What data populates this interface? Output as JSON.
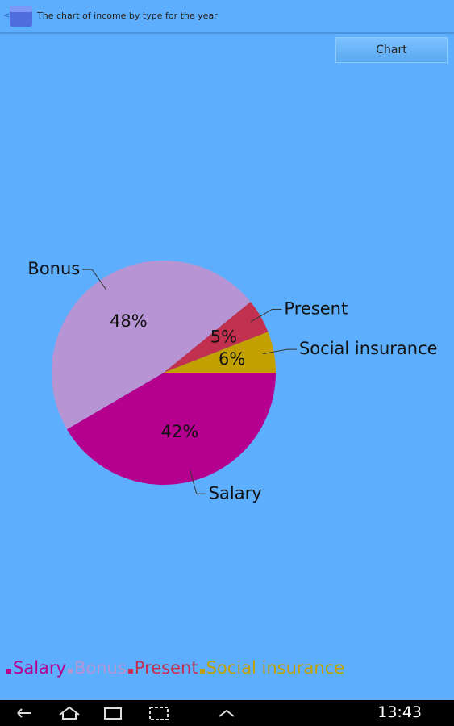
{
  "app_bar": {
    "title": "The chart of income by type for the year"
  },
  "toolbar": {
    "button": "Chart"
  },
  "chart_data": {
    "type": "pie",
    "categories": [
      "Salary",
      "Bonus",
      "Present",
      "Social insurance"
    ],
    "values": [
      42,
      48,
      5,
      6
    ],
    "value_labels": [
      "42%",
      "48%",
      "5%",
      "6%"
    ],
    "colors": [
      "#b5008f",
      "#b794d4",
      "#c2304f",
      "#c2a000"
    ],
    "legend": "bottom"
  },
  "status_bar": {
    "time": "13:43"
  }
}
